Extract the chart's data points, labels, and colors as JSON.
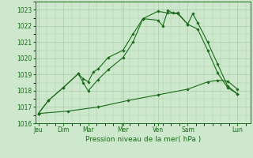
{
  "background_color": "#cde8cd",
  "grid_color": "#aaccaa",
  "line_color": "#1a6b1a",
  "title": "Pression niveau de la mer( hPa )",
  "ylim": [
    1016,
    1023.5
  ],
  "xlim": [
    -0.3,
    21.3
  ],
  "yticks": [
    1016,
    1017,
    1018,
    1019,
    1020,
    1021,
    1022,
    1023
  ],
  "major_xtick_positions": [
    0,
    2.5,
    5,
    8.5,
    12,
    15,
    20
  ],
  "major_xtick_labels": [
    "Jeu",
    "Dim",
    "Mar",
    "Mer",
    "Ven",
    "Sam",
    "Lun"
  ],
  "line1_x": [
    0,
    1,
    2.5,
    4,
    4.5,
    5,
    5.5,
    6,
    7,
    8.5,
    9.5,
    10.5,
    12,
    12.5,
    13,
    13.5,
    14,
    15,
    15.5,
    16,
    17,
    18,
    19,
    20
  ],
  "line1_y": [
    1016.6,
    1017.4,
    1018.2,
    1019.05,
    1018.75,
    1018.55,
    1019.15,
    1019.35,
    1020.05,
    1020.5,
    1021.5,
    1022.45,
    1022.35,
    1022.0,
    1022.95,
    1022.8,
    1022.8,
    1022.1,
    1022.75,
    1022.2,
    1021.0,
    1019.65,
    1018.3,
    1017.8
  ],
  "line2_x": [
    0,
    1,
    2.5,
    4,
    4.5,
    5,
    6,
    7,
    8.5,
    9.5,
    10.5,
    12,
    13,
    14,
    15,
    16,
    17,
    18,
    19,
    20
  ],
  "line2_y": [
    1016.6,
    1017.4,
    1018.2,
    1019.05,
    1018.5,
    1018.0,
    1018.7,
    1019.3,
    1020.05,
    1021.0,
    1022.45,
    1022.9,
    1022.8,
    1022.75,
    1022.1,
    1021.8,
    1020.5,
    1019.1,
    1018.2,
    1017.8
  ],
  "line3_x": [
    0,
    3,
    6,
    9,
    12,
    15,
    17,
    18,
    19,
    20
  ],
  "line3_y": [
    1016.6,
    1016.75,
    1017.0,
    1017.4,
    1017.75,
    1018.1,
    1018.55,
    1018.65,
    1018.6,
    1018.1
  ]
}
